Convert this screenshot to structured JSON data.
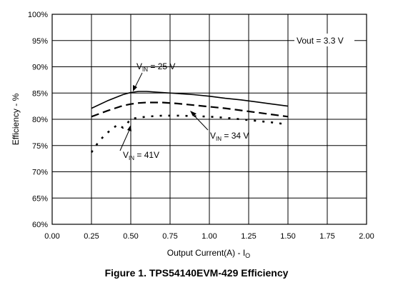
{
  "caption": "Figure 1. TPS54140EVM-429 Efficiency",
  "chart_data": {
    "type": "line",
    "xlabel": "Output Current(A) - I",
    "xlabel_sub": "O",
    "ylabel": "Efficiency - %",
    "xlim": [
      0,
      2
    ],
    "ylim": [
      60,
      100
    ],
    "x_ticks": [
      "0.00",
      "0.25",
      "0.50",
      "0.75",
      "1.00",
      "1.25",
      "1.50",
      "1.75",
      "2.00"
    ],
    "y_ticks": [
      "60%",
      "65%",
      "70%",
      "75%",
      "80%",
      "85%",
      "90%",
      "95%",
      "100%"
    ],
    "grid": true,
    "annotations": {
      "vout": "Vout = 3.3 V",
      "vin25": {
        "main": "V",
        "sub": "IN",
        "rest": " = 25 V"
      },
      "vin34": {
        "main": "V",
        "sub": "IN",
        "rest": " = 34 V"
      },
      "vin41": {
        "main": "V",
        "sub": "IN",
        "rest": " = 41V"
      }
    },
    "series": [
      {
        "key": "vin25",
        "style": "solid",
        "x": [
          0.25,
          0.35,
          0.45,
          0.5,
          0.55,
          0.6,
          0.7,
          0.8,
          0.9,
          1.0,
          1.1,
          1.2,
          1.3,
          1.4,
          1.5
        ],
        "y": [
          82.1,
          83.5,
          84.7,
          85.1,
          85.3,
          85.3,
          85.1,
          84.9,
          84.7,
          84.4,
          84.0,
          83.7,
          83.3,
          82.9,
          82.5
        ]
      },
      {
        "key": "vin34",
        "style": "dashed",
        "x": [
          0.25,
          0.35,
          0.45,
          0.5,
          0.55,
          0.6,
          0.7,
          0.8,
          0.9,
          1.0,
          1.1,
          1.2,
          1.3,
          1.4,
          1.5
        ],
        "y": [
          80.5,
          81.6,
          82.6,
          82.9,
          83.1,
          83.2,
          83.2,
          83.0,
          82.7,
          82.4,
          82.1,
          81.7,
          81.3,
          80.9,
          80.5
        ]
      },
      {
        "key": "vin41",
        "style": "dotted",
        "x": [
          0.25,
          0.3,
          0.35,
          0.4,
          0.42,
          0.45,
          0.48,
          0.5,
          0.6,
          0.7,
          0.8,
          0.9,
          1.0,
          1.1,
          1.2,
          1.3,
          1.4,
          1.5
        ],
        "y": [
          73.7,
          75.9,
          77.4,
          78.6,
          79.0,
          78.4,
          79.3,
          80.1,
          80.5,
          80.7,
          80.7,
          80.6,
          80.5,
          80.3,
          80.0,
          79.7,
          79.4,
          79.0
        ]
      }
    ]
  }
}
